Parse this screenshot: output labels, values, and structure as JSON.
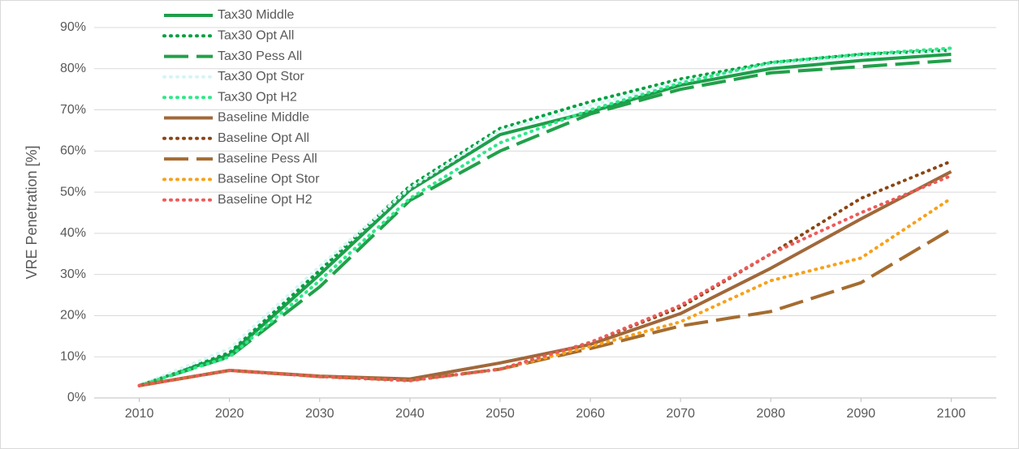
{
  "chart_data": {
    "type": "line",
    "y_label": "VRE Penetration [%]",
    "x": [
      2010,
      2020,
      2030,
      2040,
      2050,
      2060,
      2070,
      2080,
      2090,
      2100
    ],
    "xlim": [
      2005,
      2105
    ],
    "xticks": [
      2010,
      2020,
      2030,
      2040,
      2050,
      2060,
      2070,
      2080,
      2090,
      2100
    ],
    "ylim": [
      0,
      90
    ],
    "yticks": [
      {
        "value": 0,
        "label": "0%"
      },
      {
        "value": 10,
        "label": "10%"
      },
      {
        "value": 20,
        "label": "20%"
      },
      {
        "value": 30,
        "label": "30%"
      },
      {
        "value": 40,
        "label": "40%"
      },
      {
        "value": 50,
        "label": "50%"
      },
      {
        "value": 60,
        "label": "60%"
      },
      {
        "value": 70,
        "label": "70%"
      },
      {
        "value": 80,
        "label": "80%"
      },
      {
        "value": 90,
        "label": "90%"
      }
    ],
    "grid": true,
    "legend": "upper-left",
    "series": [
      {
        "name": "Tax30 Middle",
        "color": "#1e9e4a",
        "style": "solid",
        "values": [
          3,
          10.5,
          30,
          50.5,
          64,
          69.5,
          76,
          80,
          82,
          83.5
        ]
      },
      {
        "name": "Tax30 Opt All",
        "color": "#00a040",
        "style": "dotted",
        "values": [
          3,
          11,
          31,
          51.5,
          65.5,
          72,
          77.5,
          81.5,
          83.5,
          84.5
        ]
      },
      {
        "name": "Tax30 Pess All",
        "color": "#22a04a",
        "style": "dashed",
        "values": [
          3,
          10,
          27,
          48,
          60,
          69,
          75,
          79,
          80.5,
          82
        ]
      },
      {
        "name": "Tax30 Opt Stor",
        "color": "#d6f5f5",
        "style": "dotted",
        "values": [
          3,
          12,
          32,
          51,
          65,
          71,
          77,
          81,
          83,
          84.5
        ]
      },
      {
        "name": "Tax30 Opt H2",
        "color": "#2ee88a",
        "style": "dotted",
        "values": [
          3,
          10,
          28.5,
          48.5,
          62,
          70,
          76.5,
          81.5,
          83.5,
          85
        ]
      },
      {
        "name": "Baseline Middle",
        "color": "#a0683a",
        "style": "solid",
        "values": [
          3,
          6.7,
          5.3,
          4.6,
          8.5,
          13,
          20.5,
          31.5,
          43.5,
          55
        ]
      },
      {
        "name": "Baseline Opt All",
        "color": "#8b4513",
        "style": "dotted",
        "values": [
          3,
          6.7,
          5.2,
          4.2,
          7,
          13.5,
          22,
          35,
          48.5,
          57.5
        ]
      },
      {
        "name": "Baseline Pess All",
        "color": "#a56c30",
        "style": "dashed",
        "values": [
          3,
          6.7,
          5.2,
          4.3,
          7,
          12,
          17.5,
          21,
          28,
          41
        ]
      },
      {
        "name": "Baseline Opt Stor",
        "color": "#f7a11a",
        "style": "dotted",
        "values": [
          3,
          6.7,
          5.2,
          4.2,
          7,
          12.5,
          18.5,
          28.5,
          34,
          48.5
        ]
      },
      {
        "name": "Baseline Opt H2",
        "color": "#ef5a5a",
        "style": "dotted",
        "values": [
          3,
          6.7,
          5.2,
          4.2,
          7,
          13.5,
          22.5,
          35,
          45,
          54
        ]
      }
    ]
  }
}
